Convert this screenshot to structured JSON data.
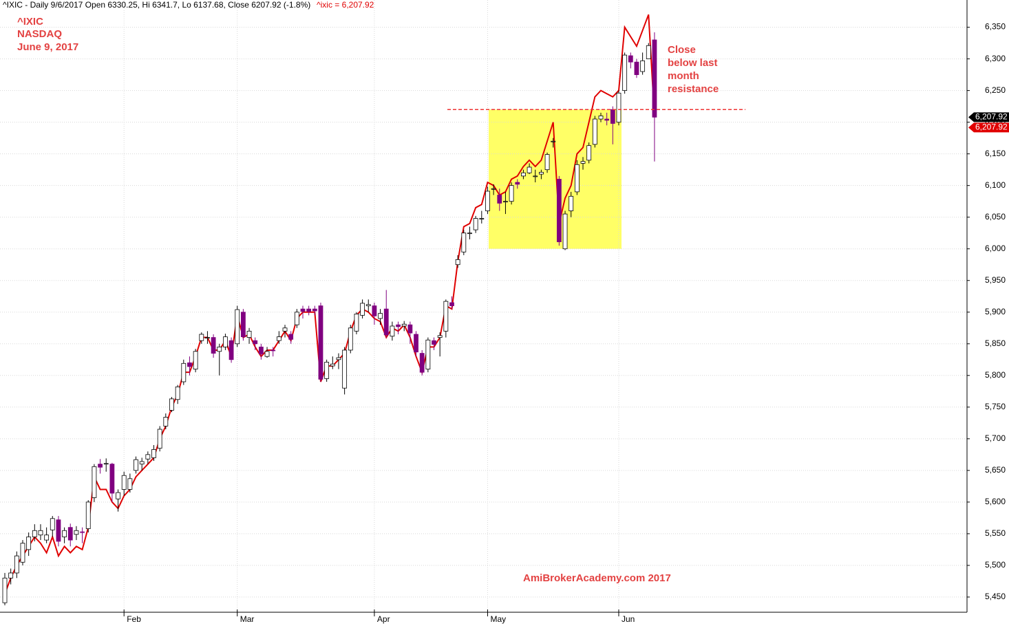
{
  "chart_data": {
    "type": "candlestick",
    "header": "^IXIC - Daily 9/6/2017 Open 6330.25, Hi 6341.7, Lo 6137.68, Close 6207.92 (-1.8%)",
    "header_overlay": "^ixic = 6,207.92",
    "annotations": [
      "^IXIC",
      "NASDAQ",
      "June 9, 2017"
    ],
    "note": [
      "Close",
      "below last",
      "month",
      "resistance"
    ],
    "watermark": "AmiBrokerAcademy.com  2017",
    "categories": [
      null,
      null,
      null,
      null,
      null,
      null,
      null,
      null,
      null,
      null,
      null,
      null,
      null,
      null,
      null,
      null,
      null,
      null,
      null,
      null,
      "Feb",
      null,
      null,
      null,
      null,
      null,
      null,
      null,
      null,
      null,
      null,
      null,
      null,
      null,
      null,
      null,
      null,
      null,
      null,
      "Mar",
      null,
      null,
      null,
      null,
      null,
      null,
      null,
      null,
      null,
      null,
      null,
      null,
      null,
      null,
      null,
      null,
      null,
      null,
      null,
      null,
      null,
      null,
      "Apr",
      null,
      null,
      null,
      null,
      null,
      null,
      null,
      null,
      null,
      null,
      null,
      null,
      null,
      null,
      null,
      null,
      null,
      null,
      "May",
      null,
      null,
      null,
      null,
      null,
      null,
      null,
      null,
      null,
      null,
      null,
      null,
      null,
      null,
      null,
      null,
      null,
      null,
      null,
      null,
      null,
      "Jun",
      null,
      null,
      null,
      null,
      null,
      null
    ],
    "open": [
      5441,
      5480,
      5488,
      5505,
      5525,
      5545,
      5548,
      5540,
      5556,
      5572,
      5545,
      5560,
      5549,
      5553,
      5558,
      5607,
      5660,
      5660,
      5660,
      5605,
      5620,
      5620,
      5650,
      5660,
      5668,
      5670,
      5685,
      5720,
      5745,
      5762,
      5790,
      5820,
      5810,
      5855,
      5860,
      5860,
      5838,
      5845,
      5855,
      5850,
      5900,
      5860,
      5855,
      5845,
      5830,
      5840,
      5855,
      5870,
      5865,
      5880,
      5905,
      5905,
      5905,
      5910,
      5795,
      5815,
      5825,
      5780,
      5840,
      5870,
      5895,
      5910,
      5910,
      5890,
      5905,
      5862,
      5880,
      5878,
      5880,
      5865,
      5835,
      5810,
      5855,
      5860,
      5870,
      5915,
      5975,
      5995,
      6025,
      6030,
      6048,
      6060,
      6095,
      6085,
      6075,
      6075,
      6105,
      6115,
      6120,
      6115,
      6118,
      6125,
      6170,
      6110,
      6000,
      6060,
      6090,
      6135,
      6140,
      6165,
      6205,
      6205,
      6220,
      6200,
      6250,
      6305,
      6295,
      6280,
      6300,
      6330
    ],
    "high": [
      5488,
      5495,
      5522,
      5540,
      5552,
      5565,
      5565,
      5560,
      5578,
      5578,
      5560,
      5566,
      5562,
      5560,
      5603,
      5660,
      5668,
      5669,
      5662,
      5620,
      5648,
      5645,
      5672,
      5670,
      5680,
      5690,
      5720,
      5740,
      5766,
      5785,
      5825,
      5830,
      5842,
      5868,
      5870,
      5865,
      5850,
      5866,
      5860,
      5910,
      5905,
      5875,
      5860,
      5850,
      5845,
      5845,
      5870,
      5880,
      5870,
      5905,
      5910,
      5910,
      5910,
      5915,
      5825,
      5830,
      5835,
      5845,
      5880,
      5900,
      5920,
      5920,
      5915,
      5905,
      5935,
      5885,
      5885,
      5886,
      5885,
      5870,
      5840,
      5860,
      5860,
      5868,
      5920,
      5925,
      5990,
      6030,
      6035,
      6052,
      6060,
      6098,
      6102,
      6095,
      6090,
      6105,
      6110,
      6125,
      6135,
      6125,
      6125,
      6152,
      6175,
      6115,
      6060,
      6090,
      6140,
      6145,
      6168,
      6210,
      6215,
      6215,
      6225,
      6250,
      6310,
      6310,
      6300,
      6310,
      6325,
      6342
    ],
    "low": [
      5437,
      5470,
      5480,
      5500,
      5515,
      5538,
      5540,
      5535,
      5545,
      5530,
      5535,
      5530,
      5540,
      5535,
      5552,
      5600,
      5645,
      5648,
      5600,
      5585,
      5610,
      5615,
      5645,
      5650,
      5660,
      5665,
      5680,
      5715,
      5742,
      5755,
      5785,
      5800,
      5805,
      5850,
      5850,
      5828,
      5800,
      5840,
      5820,
      5845,
      5855,
      5850,
      5840,
      5825,
      5828,
      5830,
      5850,
      5860,
      5850,
      5875,
      5890,
      5895,
      5895,
      5790,
      5790,
      5810,
      5810,
      5770,
      5835,
      5865,
      5890,
      5900,
      5880,
      5880,
      5860,
      5855,
      5865,
      5870,
      5850,
      5830,
      5800,
      5805,
      5840,
      5830,
      5860,
      5905,
      5970,
      5990,
      6015,
      6025,
      6040,
      6055,
      6085,
      6060,
      6055,
      6070,
      6095,
      6110,
      6118,
      6105,
      6110,
      6120,
      6160,
      6005,
      5998,
      6050,
      6085,
      6125,
      6135,
      6160,
      6200,
      6195,
      6165,
      6195,
      6245,
      6285,
      6270,
      6275,
      6300,
      6138
    ],
    "close": [
      5480,
      5488,
      5515,
      5535,
      5545,
      5555,
      5555,
      5548,
      5574,
      5538,
      5555,
      5540,
      5555,
      5552,
      5600,
      5656,
      5655,
      5661,
      5614,
      5615,
      5642,
      5637,
      5667,
      5664,
      5675,
      5683,
      5715,
      5734,
      5763,
      5782,
      5819,
      5814,
      5838,
      5865,
      5860,
      5835,
      5845,
      5861,
      5825,
      5904,
      5861,
      5870,
      5850,
      5834,
      5838,
      5839,
      5861,
      5875,
      5857,
      5900,
      5901,
      5901,
      5902,
      5794,
      5821,
      5818,
      5828,
      5840,
      5875,
      5897,
      5914,
      5912,
      5894,
      5898,
      5864,
      5878,
      5877,
      5881,
      5867,
      5837,
      5805,
      5856,
      5849,
      5863,
      5917,
      5910,
      5983,
      6025,
      6025,
      6048,
      6048,
      6091,
      6095,
      6072,
      6075,
      6100,
      6102,
      6120,
      6129,
      6115,
      6121,
      6149,
      6170,
      6011,
      6055,
      6083,
      6133,
      6138,
      6163,
      6205,
      6210,
      6203,
      6198,
      6246,
      6306,
      6295,
      6275,
      6297,
      6321,
      6207.92
    ],
    "overlay": {
      "color": "#e00000",
      "values": [
        5455,
        5480,
        5500,
        5515,
        5530,
        5545,
        5535,
        5520,
        5545,
        5515,
        5530,
        5520,
        5530,
        5525,
        5560,
        5640,
        5620,
        5620,
        5600,
        5590,
        5610,
        5620,
        5640,
        5650,
        5660,
        5670,
        5700,
        5720,
        5750,
        5770,
        5805,
        5805,
        5830,
        5860,
        5860,
        5840,
        5840,
        5855,
        5830,
        5895,
        5860,
        5865,
        5845,
        5830,
        5840,
        5840,
        5855,
        5870,
        5855,
        5890,
        5900,
        5900,
        5900,
        5790,
        5815,
        5815,
        5825,
        5835,
        5870,
        5895,
        5905,
        5900,
        5890,
        5885,
        5860,
        5875,
        5870,
        5880,
        5860,
        5830,
        5805,
        5845,
        5845,
        5860,
        5910,
        5905,
        5980,
        6035,
        6040,
        6065,
        6070,
        6105,
        6100,
        6085,
        6090,
        6110,
        6115,
        6130,
        6140,
        6130,
        6140,
        6170,
        6200,
        6040,
        6080,
        6100,
        6150,
        6160,
        6200,
        6240,
        6250,
        6245,
        6240,
        6250,
        6350,
        6335,
        6320,
        6345,
        6370,
        6207.92
      ]
    },
    "up_color": "#ffffff",
    "down_color": "#800080",
    "zone": {
      "from": 6000,
      "to": 6220,
      "color": "#ffff66"
    },
    "resistance": 6220,
    "last_labels": [
      {
        "value": 6207.92,
        "label": "6,207.92"
      },
      {
        "value": 6207.92,
        "label": "6,207.92"
      }
    ],
    "ylim": [
      5426,
      6393
    ],
    "yticks": [
      {
        "value": 5450,
        "label": "5,450"
      },
      {
        "value": 5500,
        "label": "5,500"
      },
      {
        "value": 5550,
        "label": "5,550"
      },
      {
        "value": 5600,
        "label": "5,600"
      },
      {
        "value": 5650,
        "label": "5,650"
      },
      {
        "value": 5700,
        "label": "5,700"
      },
      {
        "value": 5750,
        "label": "5,750"
      },
      {
        "value": 5800,
        "label": "5,800"
      },
      {
        "value": 5850,
        "label": "5,850"
      },
      {
        "value": 5900,
        "label": "5,900"
      },
      {
        "value": 5950,
        "label": "5,950"
      },
      {
        "value": 6000,
        "label": "6,000"
      },
      {
        "value": 6050,
        "label": "6,050"
      },
      {
        "value": 6100,
        "label": "6,100"
      },
      {
        "value": 6150,
        "label": "6,150"
      },
      {
        "value": 6200,
        "label": "6,200"
      },
      {
        "value": 6250,
        "label": "6,250"
      },
      {
        "value": 6300,
        "label": "6,300"
      },
      {
        "value": 6350,
        "label": "6,350"
      }
    ],
    "grid": true
  }
}
